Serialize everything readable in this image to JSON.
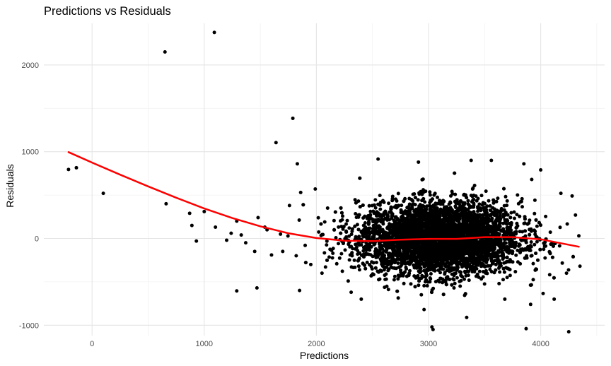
{
  "chart_data": {
    "type": "scatter",
    "title": "Predictions vs Residuals",
    "xlabel": "Predictions",
    "ylabel": "Residuals",
    "xlim": [
      -430,
      4570
    ],
    "ylim": [
      -1120,
      2480
    ],
    "x_ticks": [
      0,
      1000,
      2000,
      3000,
      4000
    ],
    "y_ticks": [
      -1000,
      0,
      1000,
      2000
    ],
    "grid": true,
    "background": "minimal",
    "point_color": "#000000",
    "smooth_color": "#ff0000",
    "outliers": [
      {
        "x": -210,
        "y": 795
      },
      {
        "x": -140,
        "y": 815
      },
      {
        "x": 100,
        "y": 520
      },
      {
        "x": 650,
        "y": 2150
      },
      {
        "x": 1090,
        "y": 2375
      },
      {
        "x": 1790,
        "y": 1385
      },
      {
        "x": 1640,
        "y": 1105
      },
      {
        "x": 1830,
        "y": 860
      },
      {
        "x": 1290,
        "y": -605
      },
      {
        "x": 1470,
        "y": -570
      },
      {
        "x": 1850,
        "y": -600
      },
      {
        "x": 660,
        "y": 400
      },
      {
        "x": 870,
        "y": 290
      },
      {
        "x": 1000,
        "y": 310
      },
      {
        "x": 890,
        "y": 150
      },
      {
        "x": 930,
        "y": -30
      },
      {
        "x": 1100,
        "y": 130
      },
      {
        "x": 1290,
        "y": 200
      },
      {
        "x": 1540,
        "y": 130
      },
      {
        "x": 1860,
        "y": 530
      },
      {
        "x": 1990,
        "y": 570
      },
      {
        "x": 2550,
        "y": 915
      },
      {
        "x": 3030,
        "y": -1020
      },
      {
        "x": 3040,
        "y": -1050
      },
      {
        "x": 3340,
        "y": -910
      },
      {
        "x": 3870,
        "y": -1040
      },
      {
        "x": 4250,
        "y": -1075
      },
      {
        "x": 4120,
        "y": -700
      },
      {
        "x": 4340,
        "y": 30
      },
      {
        "x": 4350,
        "y": -320
      },
      {
        "x": 4310,
        "y": 270
      },
      {
        "x": 4280,
        "y": 490
      },
      {
        "x": 4000,
        "y": 790
      },
      {
        "x": 3920,
        "y": 680
      },
      {
        "x": 3560,
        "y": 900
      },
      {
        "x": 3380,
        "y": 900
      },
      {
        "x": 2910,
        "y": 880
      },
      {
        "x": 3850,
        "y": 860
      },
      {
        "x": 3910,
        "y": -760
      },
      {
        "x": 3680,
        "y": -700
      },
      {
        "x": 2960,
        "y": -820
      },
      {
        "x": 2310,
        "y": -620
      },
      {
        "x": 2400,
        "y": -700
      },
      {
        "x": 4180,
        "y": 520
      },
      {
        "x": 4230,
        "y": -400
      },
      {
        "x": 1200,
        "y": -20
      },
      {
        "x": 1240,
        "y": 60
      },
      {
        "x": 1370,
        "y": -50
      },
      {
        "x": 1480,
        "y": 240
      },
      {
        "x": 1600,
        "y": -190
      },
      {
        "x": 1700,
        "y": -150
      },
      {
        "x": 1760,
        "y": 380
      },
      {
        "x": 1900,
        "y": -80
      },
      {
        "x": 1330,
        "y": 40
      },
      {
        "x": 1450,
        "y": -150
      },
      {
        "x": 1560,
        "y": 100
      },
      {
        "x": 1680,
        "y": 50
      },
      {
        "x": 1820,
        "y": -200
      },
      {
        "x": 1950,
        "y": -300
      },
      {
        "x": 2050,
        "y": -400
      },
      {
        "x": 2100,
        "y": 350
      }
    ],
    "cluster": {
      "count": 5200,
      "x_mean": 3100,
      "x_sd": 360,
      "y_mean": 0,
      "y_sd": 210,
      "x_min": 1600,
      "x_max": 4340
    },
    "smooth": {
      "x": [
        -210,
        0,
        250,
        500,
        750,
        1000,
        1250,
        1500,
        1750,
        2000,
        2250,
        2500,
        2750,
        3000,
        3250,
        3500,
        3750,
        4000,
        4340
      ],
      "y": [
        995,
        875,
        735,
        600,
        470,
        345,
        235,
        140,
        60,
        5,
        -25,
        -30,
        -15,
        -5,
        -5,
        15,
        15,
        -10,
        -95
      ]
    }
  }
}
